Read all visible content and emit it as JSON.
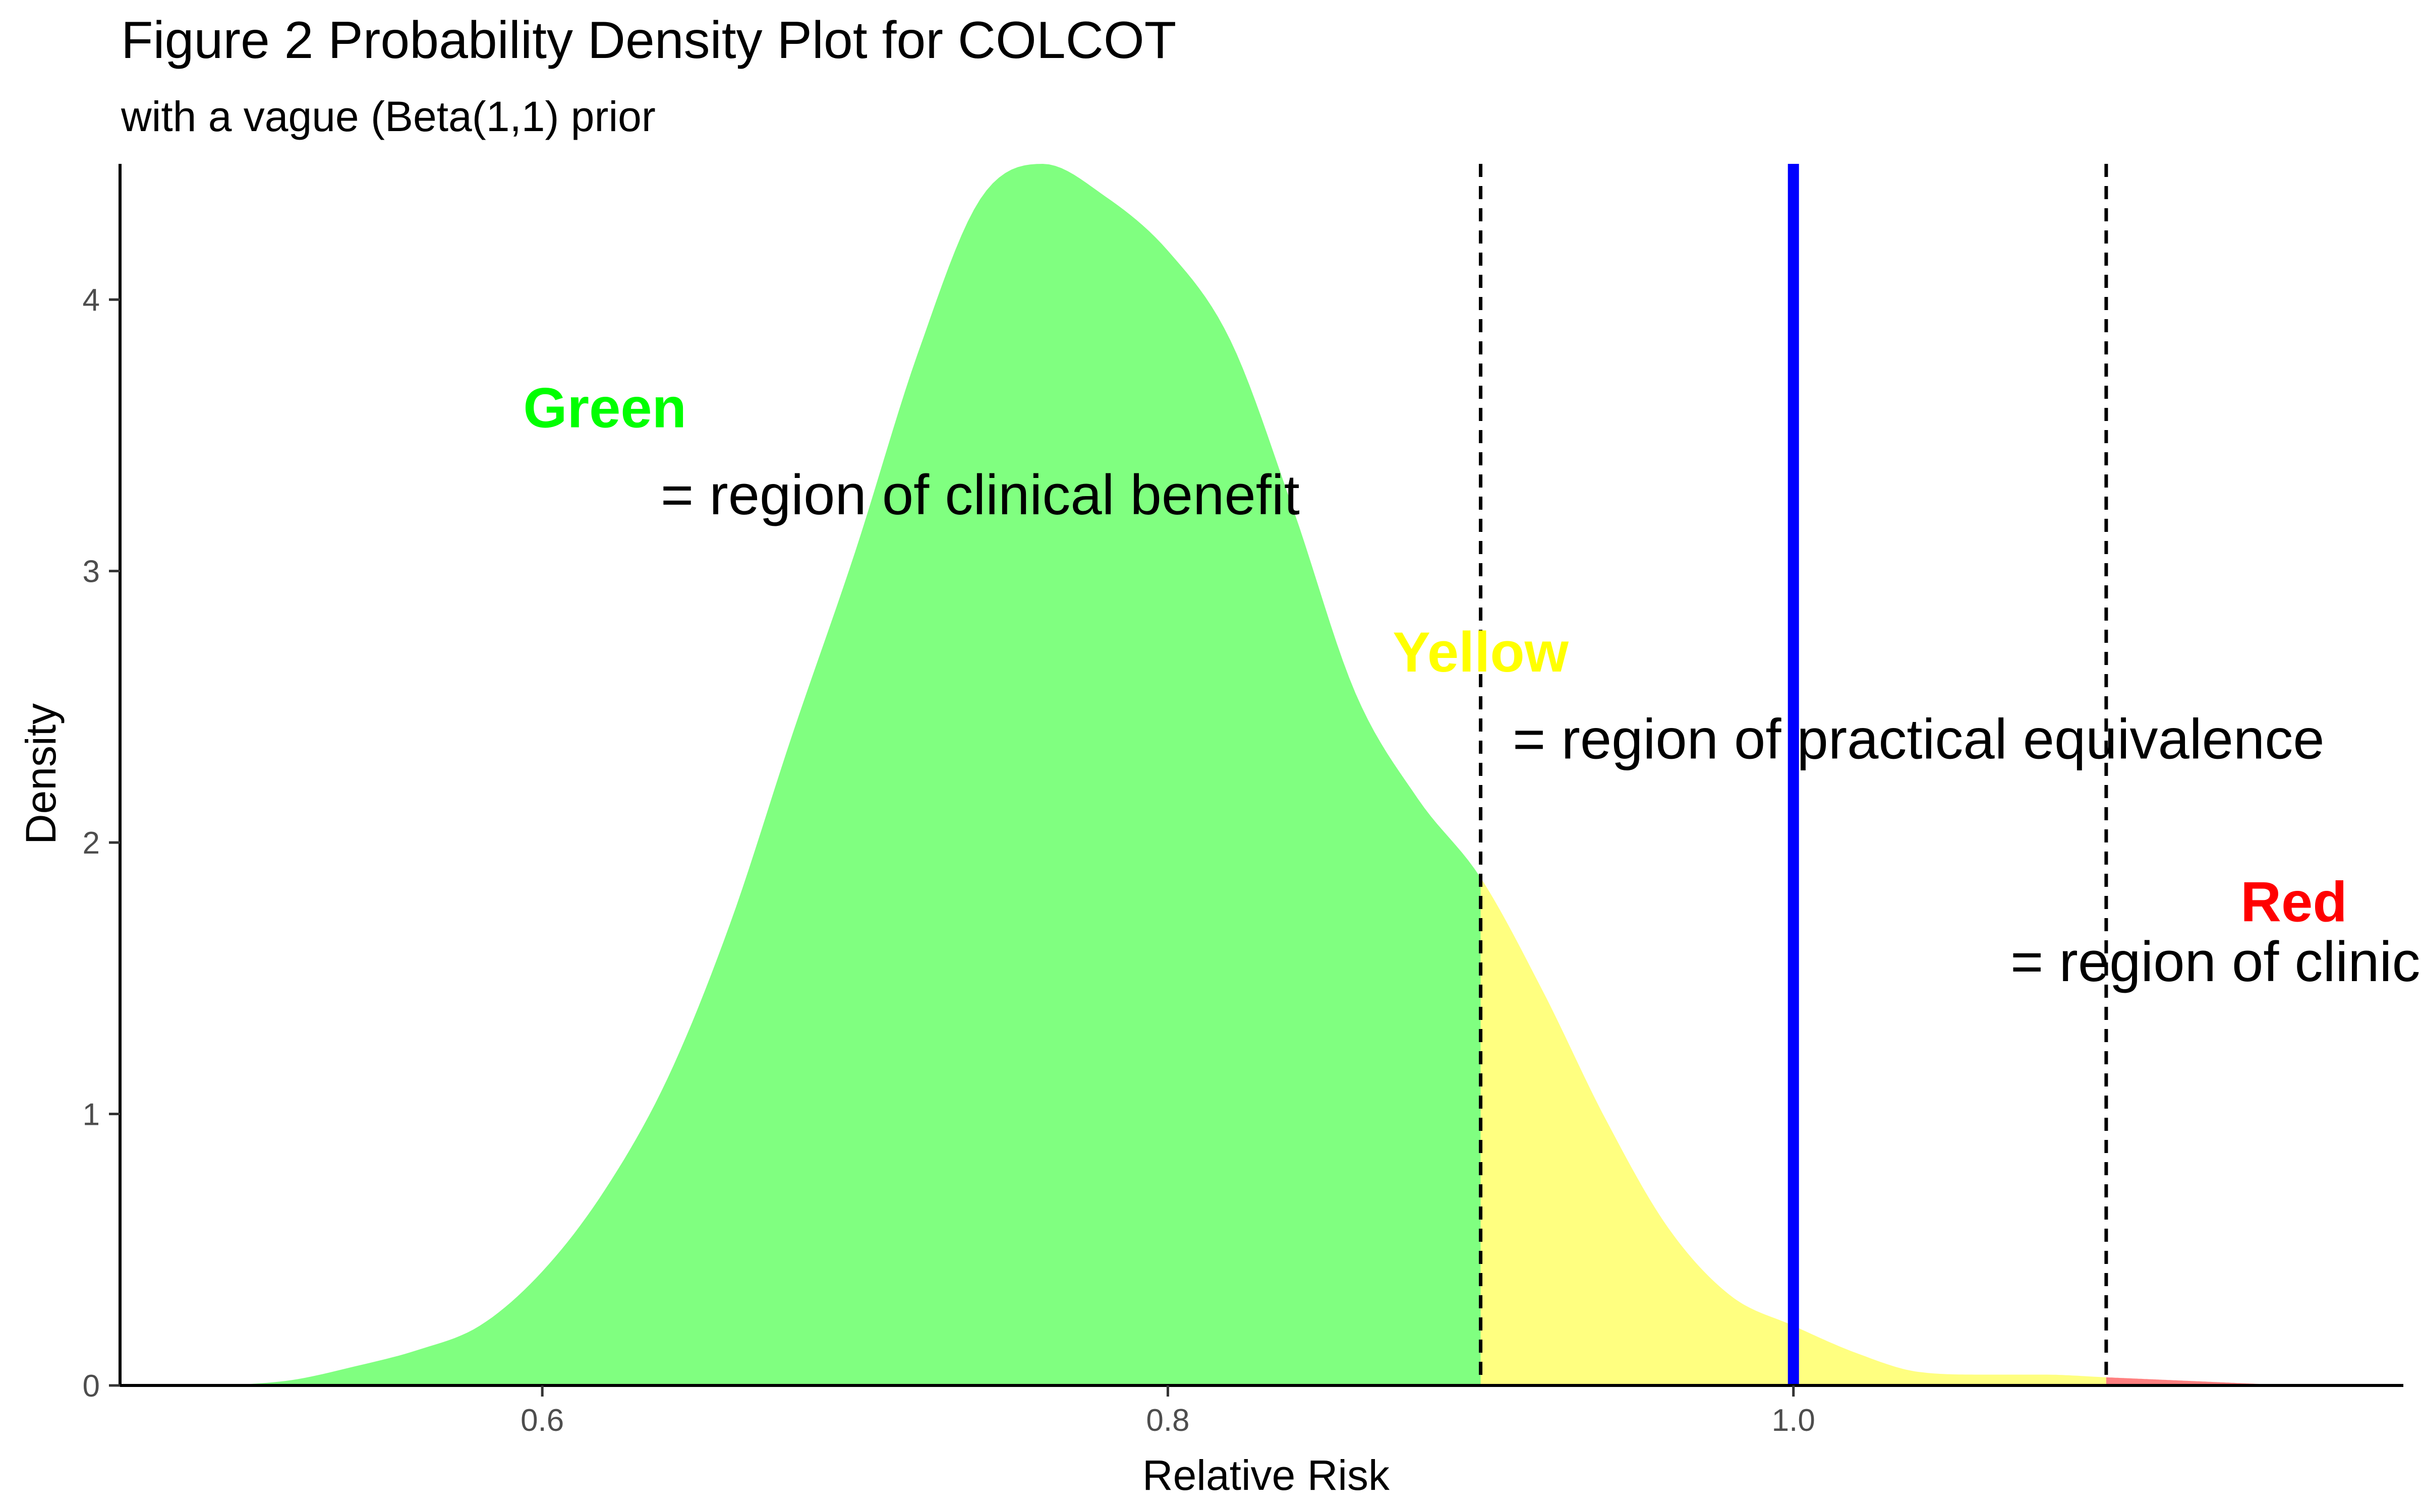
{
  "chart_data": {
    "type": "area",
    "title": "Figure 2 Probability Density Plot for COLCOT",
    "subtitle": "with a vague (Beta(1,1) prior",
    "xlabel": "Relative Risk",
    "ylabel": "Density",
    "xlim": [
      0.465,
      1.195
    ],
    "ylim": [
      0,
      4.5
    ],
    "x_ticks": [
      "0.6",
      "0.8",
      "1.0"
    ],
    "y_ticks": [
      "0",
      "1",
      "2",
      "3",
      "4"
    ],
    "grid": false,
    "series": [
      {
        "x": [
          0.5,
          0.52,
          0.54,
          0.56,
          0.58,
          0.6,
          0.62,
          0.64,
          0.66,
          0.68,
          0.7,
          0.72,
          0.74,
          0.76,
          0.78,
          0.8,
          0.82,
          0.84,
          0.86,
          0.88,
          0.9,
          0.92,
          0.94,
          0.96,
          0.98,
          1.0,
          1.02,
          1.04,
          1.06,
          1.08,
          1.1,
          1.12,
          1.14,
          1.16
        ],
        "y": [
          0.0,
          0.02,
          0.07,
          0.13,
          0.22,
          0.42,
          0.72,
          1.13,
          1.7,
          2.4,
          3.07,
          3.8,
          4.37,
          4.5,
          4.38,
          4.18,
          3.85,
          3.23,
          2.55,
          2.16,
          1.87,
          1.45,
          0.98,
          0.58,
          0.33,
          0.22,
          0.12,
          0.05,
          0.04,
          0.04,
          0.03,
          0.02,
          0.01,
          0.0
        ]
      }
    ],
    "regions": [
      {
        "name": "Green",
        "from": 0.465,
        "to": 0.9,
        "color": "#80FF80"
      },
      {
        "name": "Yellow",
        "from": 0.9,
        "to": 1.1,
        "color": "#FFFF80"
      },
      {
        "name": "Red",
        "from": 1.1,
        "to": 1.195,
        "color": "#FF8080"
      }
    ],
    "vlines": [
      {
        "x": 0.9,
        "style": "dashed",
        "color": "#000000"
      },
      {
        "x": 1.0,
        "style": "solid",
        "color": "#0000FF"
      },
      {
        "x": 1.1,
        "style": "dashed",
        "color": "#000000"
      }
    ],
    "annotations": [
      {
        "label": "Green",
        "text": "= region of clinical benefit",
        "label_color": "#00FF00",
        "label_x": 0.62,
        "label_y": 3.6,
        "text_x": 0.74,
        "text_y": 3.28
      },
      {
        "label": "Yellow",
        "text": "= region of practical equivalence",
        "label_color": "#FFFF00",
        "label_x": 0.9,
        "label_y": 2.7,
        "text_x": 1.04,
        "text_y": 2.38
      },
      {
        "label": "Red",
        "text": "= region of clinical harm",
        "label_color": "#FF0000",
        "label_x": 1.16,
        "label_y": 1.78,
        "text_x": 1.165,
        "text_y": 1.56
      }
    ]
  }
}
